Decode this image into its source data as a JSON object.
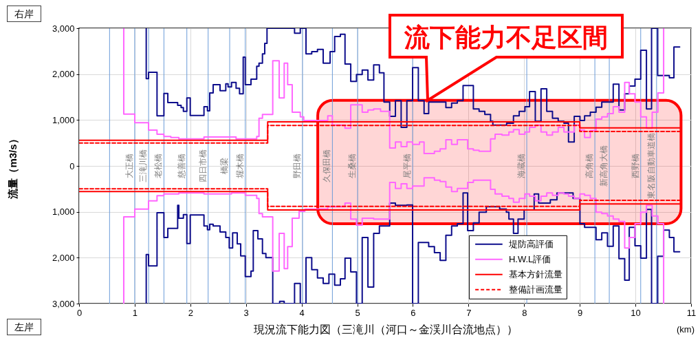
{
  "chart_data": {
    "type": "step",
    "xlabel": "現況流下能力図（三滝川（河口～金渓川合流地点））",
    "ylabel": "流量（m3/s）",
    "annotations": [
      "右岸",
      "左岸",
      "(km)"
    ],
    "xlim": [
      0,
      11
    ],
    "xticks": [
      0,
      1,
      2,
      3,
      4,
      5,
      6,
      7,
      8,
      9,
      10,
      11
    ],
    "ylim": [
      -3000,
      3000
    ],
    "yticks": [
      {
        "value": -3000,
        "label": "3,000"
      },
      {
        "value": -2000,
        "label": "2,000"
      },
      {
        "value": -1000,
        "label": "1,000"
      },
      0,
      {
        "value": 1000,
        "label": "1,000"
      },
      {
        "value": 2000,
        "label": "2,000"
      },
      {
        "value": 3000,
        "label": "3,000"
      }
    ],
    "grid": true,
    "legend": "bottom right",
    "line_style": "solid",
    "series": [
      {
        "name": "堤防高評価",
        "color": "#0d0d8c",
        "x": [
          1.207,
          1.207,
          1.249,
          1.401,
          1.525,
          1.595,
          1.772,
          1.834,
          1.875,
          1.937,
          1.998,
          2.245,
          2.307,
          2.348,
          2.41,
          2.534,
          2.637,
          2.678,
          2.74,
          2.822,
          2.884,
          2.95,
          2.987,
          3.09,
          3.193,
          3.234,
          3.296,
          3.337,
          3.378,
          3.873,
          3.976,
          4.079,
          4.182,
          4.285,
          4.388,
          4.512,
          4.594,
          4.697,
          4.78,
          4.883,
          4.986,
          5.089,
          5.192,
          5.295,
          5.398,
          5.48,
          5.583,
          5.686,
          5.789,
          5.892,
          5.995,
          6.098,
          6.201,
          6.284,
          6.593,
          6.696,
          6.799,
          6.902,
          7.087,
          7.19,
          7.293,
          7.396,
          7.437,
          7.685,
          7.808,
          7.911,
          8.014,
          8.097,
          8.2,
          8.303,
          8.406,
          8.509,
          8.612,
          8.715,
          8.797,
          8.9,
          9.003,
          9.086,
          9.189,
          9.292,
          9.395,
          9.601,
          9.704,
          9.807,
          9.889,
          9.992,
          10.095,
          10.198,
          10.29,
          10.4,
          10.61,
          10.692,
          10.795
        ],
        "values": [
          3000,
          1900,
          2040,
          1090,
          1580,
          1380,
          1320,
          1270,
          1190,
          1480,
          1100,
          1290,
          1200,
          1590,
          1770,
          1640,
          1790,
          1720,
          1820,
          1690,
          1570,
          2370,
          1770,
          1890,
          2170,
          2240,
          2440,
          2670,
          3000,
          2890,
          3000,
          2440,
          2490,
          2540,
          2240,
          2490,
          2820,
          2870,
          2220,
          1840,
          1990,
          2090,
          1870,
          2200,
          2030,
          1390,
          1080,
          1420,
          840,
          1420,
          2140,
          1420,
          1140,
          1390,
          1270,
          1370,
          1420,
          1750,
          1240,
          1190,
          1120,
          970,
          890,
          930,
          1090,
          1190,
          1290,
          1620,
          970,
          1680,
          1190,
          1040,
          970,
          930,
          520,
          1080,
          990,
          1090,
          1170,
          1280,
          1390,
          1780,
          1220,
          1570,
          1740,
          1890,
          2520,
          1240,
          3000,
          1970,
          1920,
          2590,
          2590
        ]
      },
      {
        "color": "#0d0d8c",
        "x": [
          1.207,
          1.207,
          1.249,
          1.401,
          1.525,
          1.595,
          1.772,
          1.793,
          1.875,
          1.937,
          1.998,
          2.245,
          2.307,
          2.348,
          2.41,
          2.534,
          2.637,
          2.699,
          2.76,
          2.843,
          2.905,
          2.987,
          3.09,
          3.131,
          3.214,
          3.296,
          3.358,
          3.481,
          3.605,
          3.687,
          3.873,
          3.976,
          4.079,
          4.182,
          4.285,
          4.388,
          4.491,
          4.594,
          4.697,
          4.78,
          4.883,
          4.986,
          5.089,
          5.192,
          5.295,
          5.398,
          5.583,
          5.686,
          5.892,
          5.995,
          6.098,
          6.284,
          6.387,
          6.49,
          6.593,
          6.696,
          6.799,
          6.902,
          6.984,
          7.087,
          7.19,
          7.32,
          7.56,
          7.68,
          7.726,
          7.808,
          7.89,
          8.0,
          8.18,
          8.26,
          8.47,
          8.59,
          8.88,
          9.003,
          9.086,
          9.292,
          9.395,
          9.498,
          9.601,
          9.704,
          9.807,
          9.889,
          9.992,
          10.095,
          10.198,
          10.29,
          10.4,
          10.507,
          10.61,
          10.692,
          10.795
        ],
        "values": [
          -3000,
          -1930,
          -2180,
          -1020,
          -1560,
          -1360,
          -860,
          -1140,
          -1060,
          -1690,
          -1070,
          -1310,
          -1390,
          -1270,
          -1310,
          -1440,
          -1560,
          -1790,
          -1460,
          -1700,
          -1960,
          -2410,
          -2290,
          -1410,
          -1590,
          -1910,
          -2000,
          -3000,
          -2950,
          -3000,
          -2560,
          -3000,
          -2000,
          -2260,
          -2440,
          -2560,
          -2360,
          -2600,
          -2460,
          -2010,
          -2310,
          -3000,
          -1560,
          -2640,
          -1470,
          -1310,
          -810,
          -860,
          -850,
          -3000,
          -1670,
          -1760,
          -1890,
          -2060,
          -1510,
          -1310,
          -1260,
          -590,
          -1410,
          -1240,
          -1010,
          -890,
          -940,
          -1010,
          -1160,
          -1470,
          -1160,
          -960,
          -610,
          -810,
          -740,
          -590,
          -710,
          -1260,
          -1340,
          -1610,
          -1460,
          -1750,
          -1310,
          -2020,
          -2490,
          -1340,
          -1740,
          -2010,
          -950,
          -3000,
          -1970,
          -1400,
          -1560,
          -1870,
          -1870
        ]
      },
      {
        "name": "H.W.L評価",
        "color": "#ff66ff",
        "x": [
          0.803,
          0.803,
          1.001,
          1.249,
          1.401,
          1.525,
          1.649,
          1.793,
          2.245,
          2.822,
          3.193,
          3.234,
          3.296,
          3.481,
          3.597,
          3.687,
          3.749,
          3.831,
          3.976,
          4.038,
          4.47,
          4.553,
          4.78,
          4.883,
          5.089,
          5.192,
          5.295,
          5.419,
          5.583,
          5.686,
          5.789,
          5.892,
          5.995,
          6.119,
          6.201,
          6.387,
          6.49,
          6.593,
          6.696,
          6.799,
          6.984,
          7.087,
          7.19,
          7.396,
          7.478,
          7.602,
          7.726,
          7.808,
          7.911,
          8.014,
          8.097,
          8.2,
          8.303,
          8.406,
          8.509,
          8.612,
          8.715,
          8.9,
          9.003,
          9.086,
          9.189,
          9.292,
          9.395,
          9.498,
          9.601,
          9.704,
          9.807,
          9.889,
          9.992,
          10.095,
          10.198,
          10.301,
          10.404,
          10.507
        ],
        "values": [
          3000,
          1130,
          940,
          780,
          690,
          640,
          620,
          590,
          630,
          590,
          640,
          1040,
          1120,
          2290,
          1480,
          2240,
          1770,
          1170,
          1070,
          990,
          1090,
          890,
          820,
          1330,
          1170,
          1220,
          1240,
          1190,
          390,
          520,
          420,
          520,
          470,
          520,
          270,
          320,
          370,
          570,
          470,
          570,
          370,
          340,
          320,
          590,
          690,
          670,
          740,
          790,
          690,
          740,
          840,
          890,
          740,
          670,
          740,
          840,
          740,
          890,
          780,
          620,
          770,
          1020,
          1070,
          1140,
          1290,
          1170,
          1820,
          1570,
          1390,
          1070,
          820,
          1170,
          1590,
          3000
        ]
      },
      {
        "color": "#ff66ff",
        "x": [
          0.803,
          0.803,
          1.001,
          1.249,
          1.401,
          1.525,
          1.793,
          2.245,
          2.74,
          2.987,
          3.193,
          3.234,
          3.296,
          3.481,
          3.597,
          3.687,
          3.749,
          3.831,
          3.955,
          4.058,
          4.47,
          4.78,
          4.883,
          4.986,
          5.089,
          5.295,
          5.583,
          5.686,
          5.789,
          5.892,
          5.995,
          6.201,
          6.387,
          6.49,
          6.593,
          6.696,
          6.799,
          6.984,
          7.087,
          7.396,
          7.478,
          7.602,
          7.726,
          7.808,
          7.911,
          8.014,
          8.097,
          8.2,
          8.303,
          8.406,
          8.509,
          8.612,
          8.715,
          8.797,
          8.9,
          9.003,
          9.086,
          9.189,
          9.292,
          9.395,
          9.498,
          9.601,
          9.704,
          9.807,
          9.889,
          9.992,
          10.095,
          10.198,
          10.301,
          10.404,
          10.507
        ],
        "values": [
          -3000,
          -1110,
          -940,
          -760,
          -650,
          -610,
          -590,
          -610,
          -590,
          -640,
          -710,
          -1040,
          -1110,
          -2290,
          -1470,
          -2240,
          -1760,
          -1140,
          -990,
          -940,
          -890,
          -810,
          -1160,
          -1290,
          -1140,
          -1160,
          -360,
          -490,
          -390,
          -490,
          -440,
          -260,
          -310,
          -340,
          -460,
          -560,
          -490,
          -360,
          -310,
          -510,
          -610,
          -660,
          -710,
          -790,
          -710,
          -610,
          -660,
          -760,
          -660,
          -590,
          -640,
          -590,
          -610,
          -660,
          -710,
          -610,
          -640,
          -710,
          -1010,
          -1040,
          -1090,
          -1160,
          -1210,
          -1790,
          -1560,
          -1260,
          -1010,
          -860,
          -1090,
          -1260,
          -3000
        ]
      },
      {
        "name": "基本方針流量",
        "color": "#ff0000",
        "x": [
          0,
          3.39,
          9.0,
          10.8
        ],
        "values": [
          560,
          960,
          830,
          830
        ]
      },
      {
        "color": "#ff0000",
        "x": [
          0,
          3.39,
          9.0,
          10.8
        ],
        "values": [
          -560,
          -960,
          -830,
          -830
        ]
      },
      {
        "name": "整備計画流量",
        "color": "#ff0000",
        "line_style": "dashed",
        "x": [
          0,
          3.39,
          9.0,
          10.8
        ],
        "values": [
          500,
          880,
          750,
          750
        ]
      },
      {
        "color": "#ff0000",
        "line_style": "dashed",
        "x": [
          0,
          3.39,
          9.0,
          10.8
        ],
        "values": [
          -500,
          -880,
          -750,
          -750
        ]
      }
    ],
    "ref_lines": [
      {
        "axis": "x",
        "value": 0.548,
        "color": "#6a9bd8"
      },
      {
        "axis": "x",
        "value": 1.0,
        "label": "大正橋",
        "color": "#6a9bd8"
      },
      {
        "axis": "x",
        "value": 1.25,
        "label": "三滝川橋",
        "color": "#6a9bd8"
      },
      {
        "axis": "x",
        "value": 1.525,
        "label": "老松橋",
        "color": "#6a9bd8"
      },
      {
        "axis": "x",
        "value": 1.937,
        "label": "慈善橋",
        "color": "#6a9bd8"
      },
      {
        "axis": "x",
        "value": 2.32,
        "label": "四日市橋",
        "color": "#6a9bd8"
      },
      {
        "axis": "x",
        "value": 2.707,
        "label": "橋梁",
        "color": "#6a9bd8"
      },
      {
        "axis": "x",
        "value": 2.987,
        "label": "堀木橋",
        "color": "#6a9bd8"
      },
      {
        "axis": "x",
        "value": 4.017,
        "label": "野田橋",
        "color": "#6a9bd8"
      },
      {
        "axis": "x",
        "value": 4.553,
        "label": "久保田橋",
        "color": "#6a9bd8"
      },
      {
        "axis": "x",
        "value": 5.006,
        "label": "生桑橋",
        "color": "#6a9bd8"
      },
      {
        "axis": "x",
        "value": 5.995,
        "label": "尾平橋",
        "color": "#6a9bd8"
      },
      {
        "axis": "x",
        "value": 8.047,
        "label": "海蔵橋",
        "color": "#6a9bd8"
      },
      {
        "axis": "x",
        "value": 9.271,
        "label": "高角橋",
        "color": "#6a9bd8"
      },
      {
        "axis": "x",
        "value": 9.53,
        "label": "新高角大橋",
        "color": "#6a9bd8"
      },
      {
        "axis": "x",
        "value": 10.095,
        "label": "西野橋",
        "color": "#6a9bd8"
      },
      {
        "axis": "x",
        "value": 10.38,
        "label": "東名阪自動車道橋",
        "color": "#6a9bd8"
      }
    ],
    "bands": [
      {
        "axis": "x",
        "from": 4.29,
        "to": 10.82,
        "label": "流下能力不足区間",
        "color": "#ff0000"
      }
    ]
  }
}
